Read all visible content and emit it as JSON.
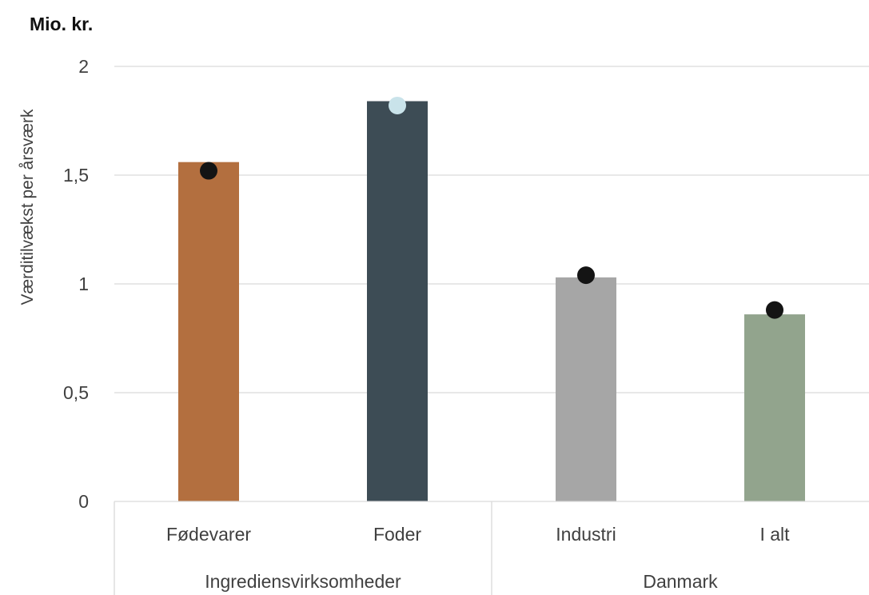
{
  "chart_data": {
    "type": "bar",
    "unit_label": "Mio. kr.",
    "ylabel": "Værditilvækst per årsværk",
    "xlabel": "",
    "ylim": [
      0,
      2
    ],
    "yticks": [
      0,
      0.5,
      1,
      1.5,
      2
    ],
    "ytick_labels": [
      "0",
      "0,5",
      "1",
      "1,5",
      "2"
    ],
    "grid": true,
    "legend": "none",
    "categories": [
      "Fødevarer",
      "Foder",
      "Industri",
      "I alt"
    ],
    "groups": [
      {
        "label": "Ingrediensvirksomheder",
        "categories": [
          "Fødevarer",
          "Foder"
        ]
      },
      {
        "label": "Danmark",
        "categories": [
          "Industri",
          "I alt"
        ]
      }
    ],
    "series": [
      {
        "kind": "bar",
        "values": [
          1.56,
          1.84,
          1.03,
          0.86
        ],
        "colors": [
          "#b36f3f",
          "#3d4c55",
          "#a6a6a6",
          "#92a48d"
        ]
      },
      {
        "kind": "marker",
        "values": [
          1.52,
          1.82,
          1.04,
          0.88
        ],
        "colors": [
          "#141414",
          "#c9e3ea",
          "#141414",
          "#141414"
        ]
      }
    ]
  }
}
